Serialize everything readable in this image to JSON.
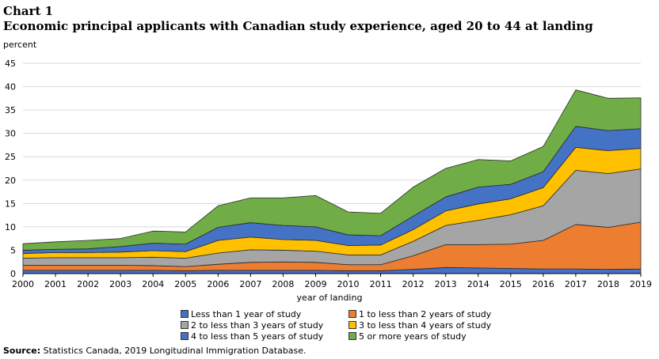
{
  "chart_title_num": "Chart 1",
  "chart_title": "Economic principal applicants with Canadian study experience, aged 20 to 44 at landing",
  "source_label": "Source:",
  "source_text": "Statistics Canada, 2019 Longitudinal Immigration Database.",
  "chart_data": {
    "type": "area",
    "stacked": true,
    "title": "Economic principal applicants with Canadian study experience, aged 20 to 44 at landing",
    "ylabel": "percent",
    "xlabel": "year of landing",
    "ylim": [
      0,
      45
    ],
    "yticks": [
      0,
      5,
      10,
      15,
      20,
      25,
      30,
      35,
      40,
      45
    ],
    "x": [
      "2000",
      "2001",
      "2002",
      "2003",
      "2004",
      "2005",
      "2006",
      "2007",
      "2008",
      "2009",
      "2010",
      "2011",
      "2012",
      "2013",
      "2014",
      "2015",
      "2016",
      "2017",
      "2018",
      "2019"
    ],
    "series": [
      {
        "name": "Less than 1 year of study",
        "color": "#4472c4",
        "values": [
          0.7,
          0.7,
          0.7,
          0.7,
          0.7,
          0.6,
          0.7,
          0.7,
          0.7,
          0.7,
          0.6,
          0.6,
          0.9,
          1.3,
          1.2,
          1.1,
          1.0,
          1.0,
          0.9,
          1.0
        ]
      },
      {
        "name": "1 to less than 2 years of study",
        "color": "#ed7d31",
        "values": [
          1.1,
          1.1,
          1.1,
          1.1,
          1.0,
          0.9,
          1.3,
          1.7,
          1.8,
          1.7,
          1.3,
          1.3,
          2.9,
          4.9,
          5.0,
          5.2,
          6.1,
          9.5,
          9.0,
          10.0
        ]
      },
      {
        "name": "2 to less than 3 years of study",
        "color": "#a5a5a5",
        "values": [
          1.5,
          1.6,
          1.6,
          1.6,
          1.8,
          1.8,
          2.4,
          2.7,
          2.5,
          2.4,
          2.1,
          2.1,
          3.1,
          4.1,
          5.2,
          6.3,
          7.4,
          11.6,
          11.5,
          11.4
        ]
      },
      {
        "name": "3 to less than 4 years of study",
        "color": "#ffc000",
        "values": [
          1.0,
          1.1,
          1.1,
          1.2,
          1.4,
          1.4,
          2.7,
          2.7,
          2.3,
          2.3,
          2.0,
          2.1,
          2.5,
          3.1,
          3.5,
          3.4,
          3.9,
          4.9,
          4.9,
          4.4
        ]
      },
      {
        "name": "4 to less than 5 years of study",
        "color": "#4472c4",
        "values": [
          0.7,
          0.7,
          0.8,
          1.2,
          1.6,
          1.6,
          2.8,
          3.1,
          3.0,
          2.9,
          2.3,
          2.0,
          2.9,
          3.0,
          3.6,
          3.1,
          3.4,
          4.5,
          4.3,
          4.2
        ]
      },
      {
        "name": "5 or more years of study",
        "color": "#70ad47",
        "values": [
          1.4,
          1.6,
          1.8,
          1.7,
          2.6,
          2.6,
          4.6,
          5.3,
          5.9,
          6.7,
          4.9,
          4.8,
          6.2,
          6.1,
          5.9,
          5.0,
          5.4,
          7.8,
          6.9,
          6.6
        ]
      }
    ]
  }
}
